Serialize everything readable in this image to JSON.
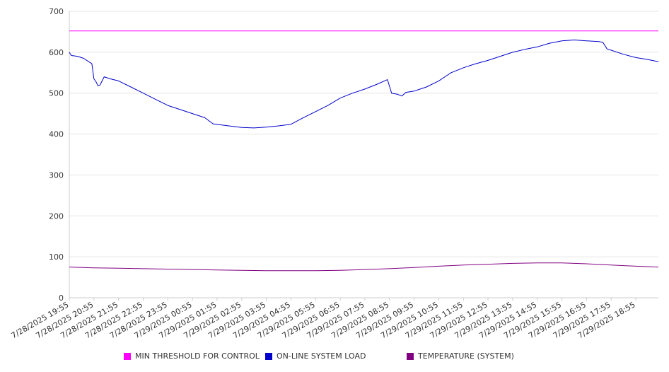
{
  "chart_data": {
    "type": "line",
    "title": "",
    "xlabel": "",
    "ylabel": "",
    "ylim": [
      0,
      700
    ],
    "yticks": [
      0,
      100,
      200,
      300,
      400,
      500,
      600,
      700
    ],
    "grid": true,
    "legend_position": "bottom",
    "x_tick_labels": [
      "7/28/2025 19:55",
      "7/28/2025 20:55",
      "7/28/2025 21:55",
      "7/28/2025 22:55",
      "7/28/2025 23:55",
      "7/29/2025 00:55",
      "7/29/2025 01:55",
      "7/29/2025 02:55",
      "7/29/2025 03:55",
      "7/29/2025 04:55",
      "7/29/2025 05:55",
      "7/29/2025 06:55",
      "7/29/2025 07:55",
      "7/29/2025 08:55",
      "7/29/2025 09:55",
      "7/29/2025 10:55",
      "7/29/2025 11:55",
      "7/29/2025 12:55",
      "7/29/2025 13:55",
      "7/29/2025 14:55",
      "7/29/2025 15:55",
      "7/29/2025 16:55",
      "7/29/2025 17:55",
      "7/29/2025 18:55"
    ],
    "x_end": "7/29/2025 19:50",
    "series": [
      {
        "name": "MIN THRESHOLD FOR CONTROL",
        "color": "#ff00ff",
        "points": [
          [
            "7/28/2025 19:55",
            652
          ],
          [
            "7/29/2025 19:50",
            652
          ]
        ]
      },
      {
        "name": "ON-LINE SYSTEM LOAD",
        "color": "#0000cc",
        "points": [
          [
            "7/28/2025 19:55",
            600
          ],
          [
            "7/28/2025 20:00",
            592
          ],
          [
            "7/28/2025 20:15",
            590
          ],
          [
            "7/28/2025 20:30",
            585
          ],
          [
            "7/28/2025 20:50",
            572
          ],
          [
            "7/28/2025 20:55",
            535
          ],
          [
            "7/28/2025 21:00",
            528
          ],
          [
            "7/28/2025 21:05",
            518
          ],
          [
            "7/28/2025 21:10",
            520
          ],
          [
            "7/28/2025 21:20",
            540
          ],
          [
            "7/28/2025 21:35",
            535
          ],
          [
            "7/28/2025 21:55",
            530
          ],
          [
            "7/28/2025 22:25",
            515
          ],
          [
            "7/28/2025 22:55",
            500
          ],
          [
            "7/28/2025 23:25",
            485
          ],
          [
            "7/28/2025 23:55",
            470
          ],
          [
            "7/29/2025 00:25",
            460
          ],
          [
            "7/29/2025 00:55",
            450
          ],
          [
            "7/29/2025 01:25",
            440
          ],
          [
            "7/29/2025 01:45",
            425
          ],
          [
            "7/29/2025 02:15",
            421
          ],
          [
            "7/29/2025 02:55",
            416
          ],
          [
            "7/29/2025 03:25",
            415
          ],
          [
            "7/29/2025 03:55",
            417
          ],
          [
            "7/29/2025 04:25",
            420
          ],
          [
            "7/29/2025 04:55",
            424
          ],
          [
            "7/29/2025 05:25",
            440
          ],
          [
            "7/29/2025 05:55",
            455
          ],
          [
            "7/29/2025 06:25",
            470
          ],
          [
            "7/29/2025 06:55",
            488
          ],
          [
            "7/29/2025 07:25",
            500
          ],
          [
            "7/29/2025 07:55",
            510
          ],
          [
            "7/29/2025 08:25",
            522
          ],
          [
            "7/29/2025 08:50",
            533
          ],
          [
            "7/29/2025 09:00",
            500
          ],
          [
            "7/29/2025 09:15",
            497
          ],
          [
            "7/29/2025 09:25",
            493
          ],
          [
            "7/29/2025 09:35",
            502
          ],
          [
            "7/29/2025 09:55",
            505
          ],
          [
            "7/29/2025 10:25",
            515
          ],
          [
            "7/29/2025 10:55",
            530
          ],
          [
            "7/29/2025 11:25",
            550
          ],
          [
            "7/29/2025 11:55",
            562
          ],
          [
            "7/29/2025 12:25",
            572
          ],
          [
            "7/29/2025 12:55",
            580
          ],
          [
            "7/29/2025 13:25",
            590
          ],
          [
            "7/29/2025 13:55",
            600
          ],
          [
            "7/29/2025 14:25",
            607
          ],
          [
            "7/29/2025 14:55",
            613
          ],
          [
            "7/29/2025 15:25",
            622
          ],
          [
            "7/29/2025 15:55",
            628
          ],
          [
            "7/29/2025 16:25",
            630
          ],
          [
            "7/29/2025 16:55",
            628
          ],
          [
            "7/29/2025 17:25",
            626
          ],
          [
            "7/29/2025 17:35",
            624
          ],
          [
            "7/29/2025 17:45",
            608
          ],
          [
            "7/29/2025 17:55",
            605
          ],
          [
            "7/29/2025 18:25",
            595
          ],
          [
            "7/29/2025 18:55",
            587
          ],
          [
            "7/29/2025 19:25",
            582
          ],
          [
            "7/29/2025 19:50",
            577
          ]
        ]
      },
      {
        "name": "TEMPERATURE (SYSTEM)",
        "color": "#800080",
        "points": [
          [
            "7/28/2025 19:55",
            75
          ],
          [
            "7/28/2025 20:55",
            73
          ],
          [
            "7/28/2025 21:55",
            72
          ],
          [
            "7/28/2025 22:55",
            71
          ],
          [
            "7/28/2025 23:55",
            70
          ],
          [
            "7/29/2025 00:55",
            69
          ],
          [
            "7/29/2025 01:55",
            68
          ],
          [
            "7/29/2025 02:55",
            67
          ],
          [
            "7/29/2025 03:55",
            66
          ],
          [
            "7/29/2025 04:55",
            66
          ],
          [
            "7/29/2025 05:55",
            66
          ],
          [
            "7/29/2025 06:55",
            67
          ],
          [
            "7/29/2025 07:55",
            69
          ],
          [
            "7/29/2025 08:55",
            71
          ],
          [
            "7/29/2025 09:55",
            74
          ],
          [
            "7/29/2025 10:55",
            77
          ],
          [
            "7/29/2025 11:55",
            80
          ],
          [
            "7/29/2025 12:55",
            82
          ],
          [
            "7/29/2025 13:55",
            84
          ],
          [
            "7/29/2025 14:55",
            85
          ],
          [
            "7/29/2025 15:55",
            85
          ],
          [
            "7/29/2025 16:55",
            83
          ],
          [
            "7/29/2025 17:55",
            80
          ],
          [
            "7/29/2025 18:55",
            77
          ],
          [
            "7/29/2025 19:50",
            75
          ]
        ]
      }
    ]
  }
}
